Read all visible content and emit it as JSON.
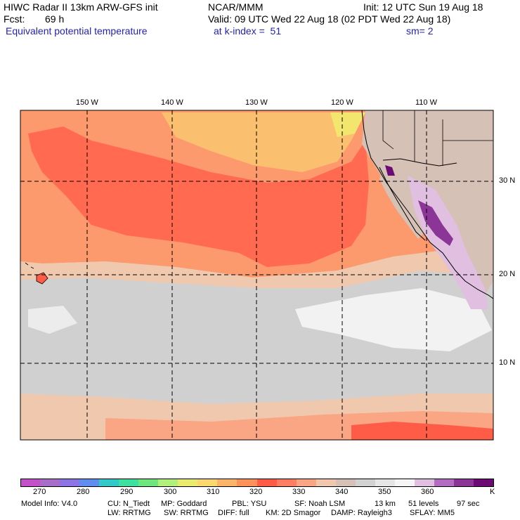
{
  "header": {
    "model_title": "HIWC Radar II 13km ARW-GFS init",
    "center": "NCAR/MMM",
    "init": "Init: 12 UTC Sun 19 Aug 18",
    "fcst_label": "Fcst:",
    "fcst_value": "69 h",
    "valid": "Valid: 09 UTC Wed 22 Aug 18 (02 PDT Wed 22 Aug 18)",
    "field": "Equivalent potential temperature",
    "level": "at k-index =  51",
    "smoothing": "sm= 2"
  },
  "map": {
    "lon_labels": [
      "150 W",
      "140 W",
      "130 W",
      "120 W",
      "110 W"
    ],
    "lat_labels": [
      "30 N",
      "20 N",
      "10 N"
    ]
  },
  "colorbar": {
    "unit": "K",
    "labels": [
      "270",
      "280",
      "290",
      "300",
      "310",
      "320",
      "330",
      "340",
      "350",
      "360"
    ],
    "colors": [
      "#c34fc9",
      "#a76dc9",
      "#8c74e4",
      "#5f8ef0",
      "#33c9c9",
      "#3de0a0",
      "#6fe67d",
      "#b1f07a",
      "#e9ea6e",
      "#fbd76f",
      "#fbb56a",
      "#fc9159",
      "#ff5c48",
      "#ff7d63",
      "#faa584",
      "#f0c8ae",
      "#d6c1b6",
      "#d2d2d2",
      "#e6e6e6",
      "#f5f5f5",
      "#e0bfe0",
      "#b46cc0",
      "#8b3597",
      "#6b0a75"
    ]
  },
  "footer": {
    "line1": [
      "Model Info: V4.0",
      "CU: N_Tiedt",
      "MP: Goddard",
      "PBL: YSU",
      "SF: Noah LSM",
      "13 km",
      "51 levels",
      "97 sec"
    ],
    "line2": [
      "LW: RRTMG",
      "SW: RRTMG",
      "DIFF: full",
      "KM: 2D Smagor",
      "DAMP: Rayleigh3",
      "SFLAY: MM5"
    ]
  }
}
